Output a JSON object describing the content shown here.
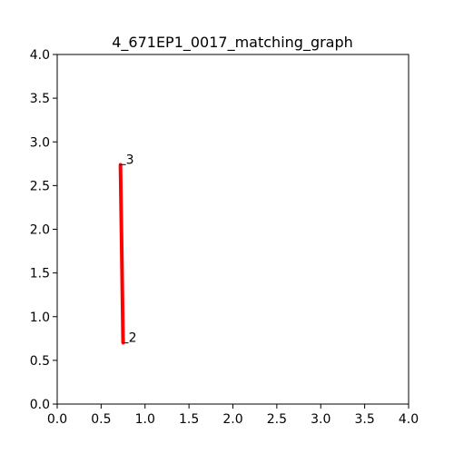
{
  "chart_data": {
    "type": "line",
    "title": "4_671EP1_0017_matching_graph",
    "xlabel": "",
    "ylabel": "",
    "xlim": [
      0.0,
      4.0
    ],
    "ylim": [
      0.0,
      4.0
    ],
    "x_ticks": [
      "0.0",
      "0.5",
      "1.0",
      "1.5",
      "2.0",
      "2.5",
      "3.0",
      "3.5",
      "4.0"
    ],
    "y_ticks": [
      "0.0",
      "0.5",
      "1.0",
      "1.5",
      "2.0",
      "2.5",
      "3.0",
      "3.5",
      "4.0"
    ],
    "grid": false,
    "nodes": [
      {
        "label": "3",
        "x": 0.72,
        "y": 2.74
      },
      {
        "label": "2",
        "x": 0.75,
        "y": 0.7
      }
    ],
    "edges": [
      {
        "from": 0,
        "to": 1,
        "color": "#ff0000"
      }
    ]
  }
}
